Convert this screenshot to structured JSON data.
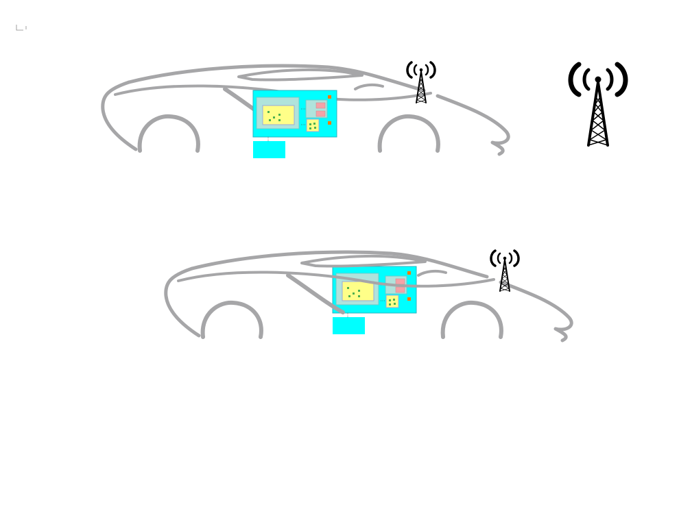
{
  "colors": {
    "car_outline": "#a6a6a8",
    "board_fill": "#00ffff",
    "board_border": "#2bb3c0",
    "module_fill": "#b0e3dc",
    "chip_fill": "#ffff88",
    "chip_dot": "#4caf50",
    "connector_fill": "#f4a3a8",
    "led_fill": "#ff7a00",
    "antenna_color": "#000000"
  },
  "icons": {
    "cell_tower": "cell-tower-icon",
    "glyph_mark": "small-glyph-icon"
  },
  "scene": {
    "cars": [
      {
        "name": "car-1",
        "has_board": true,
        "has_tower": true
      },
      {
        "name": "car-2",
        "has_board": true,
        "has_tower": true
      }
    ],
    "standalone_tower": true
  }
}
